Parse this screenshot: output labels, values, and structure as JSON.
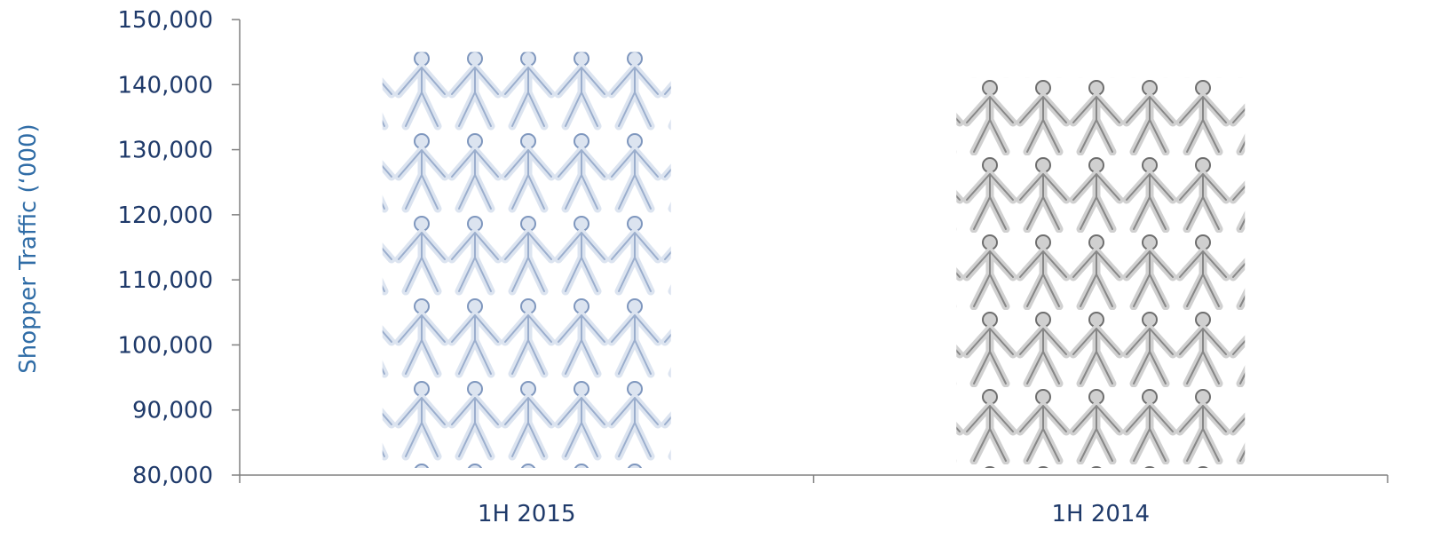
{
  "chart_data": {
    "type": "bar",
    "title": "",
    "xlabel": "",
    "ylabel": "Shopper Traffic  (‘000)",
    "ylim": [
      80000,
      150000
    ],
    "yticks": [
      "80,000",
      "90,000",
      "100,000",
      "110,000",
      "120,000",
      "130,000",
      "140,000",
      "150,000"
    ],
    "ytick_values": [
      80000,
      90000,
      100000,
      110000,
      120000,
      130000,
      140000,
      150000
    ],
    "categories": [
      "1H 2015",
      "1H 2014"
    ],
    "values": [
      145000,
      141000
    ],
    "bar_fill": "pictograph-people",
    "colors": {
      "axis": "#808080",
      "text": "#1F3A6A",
      "ylabel": "#2F6CA6",
      "bar_2015_fill": "#DCE4F0",
      "bar_2015_stroke": "#7F97BE",
      "bar_2014_fill": "#D0D0D0",
      "bar_2014_stroke": "#6E6E6E"
    },
    "grid": false,
    "legend": "none"
  }
}
